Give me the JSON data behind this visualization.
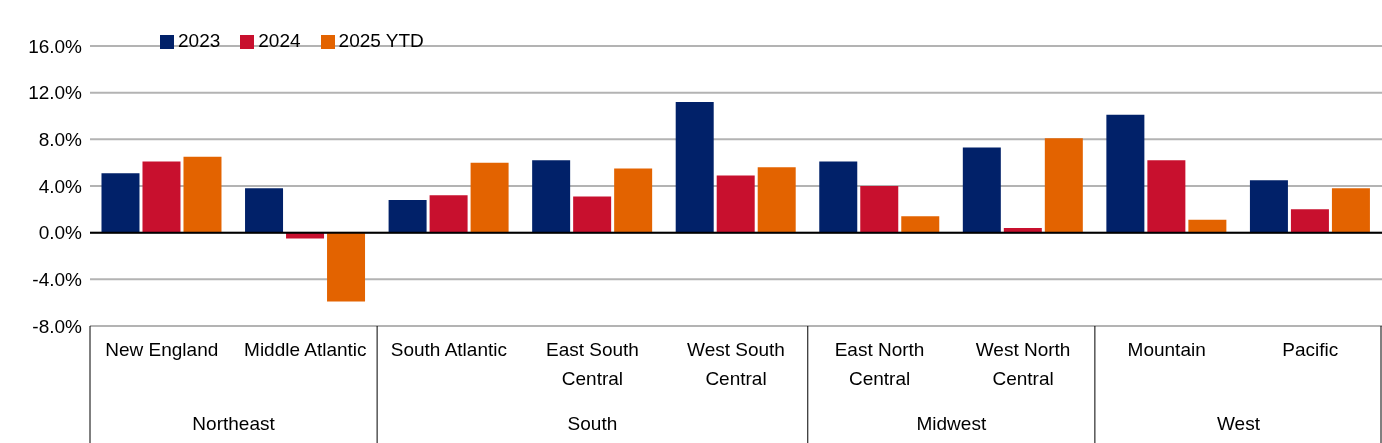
{
  "chart_data": {
    "type": "bar",
    "categories": [
      "New England",
      "Middle Atlantic",
      "South Atlantic",
      "East South Central",
      "West South Central",
      "East North Central",
      "West North Central",
      "Mountain",
      "Pacific"
    ],
    "series": [
      {
        "name": "2023",
        "color": "#012169",
        "values": [
          5.1,
          3.8,
          2.8,
          6.2,
          11.2,
          6.1,
          7.3,
          10.1,
          4.5
        ]
      },
      {
        "name": "2024",
        "color": "#c8102e",
        "values": [
          6.1,
          -0.5,
          3.2,
          3.1,
          4.9,
          4.0,
          0.4,
          6.2,
          2.0
        ]
      },
      {
        "name": "2025 YTD",
        "color": "#e36300",
        "values": [
          6.5,
          -5.9,
          6.0,
          5.5,
          5.6,
          1.4,
          8.1,
          1.1,
          3.8
        ]
      }
    ],
    "ylim": [
      -8,
      16
    ],
    "yticks": [
      {
        "value": -8,
        "label": "-8.0%"
      },
      {
        "value": -4,
        "label": "-4.0%"
      },
      {
        "value": 0,
        "label": "0.0%"
      },
      {
        "value": 4,
        "label": "4.0%"
      },
      {
        "value": 8,
        "label": "8.0%"
      },
      {
        "value": 12,
        "label": "12.0%"
      },
      {
        "value": 16,
        "label": "16.0%"
      }
    ],
    "annotations": [
      "Northeast",
      "South",
      "Midwest",
      "West"
    ],
    "grid": "y",
    "legend": "top left"
  }
}
